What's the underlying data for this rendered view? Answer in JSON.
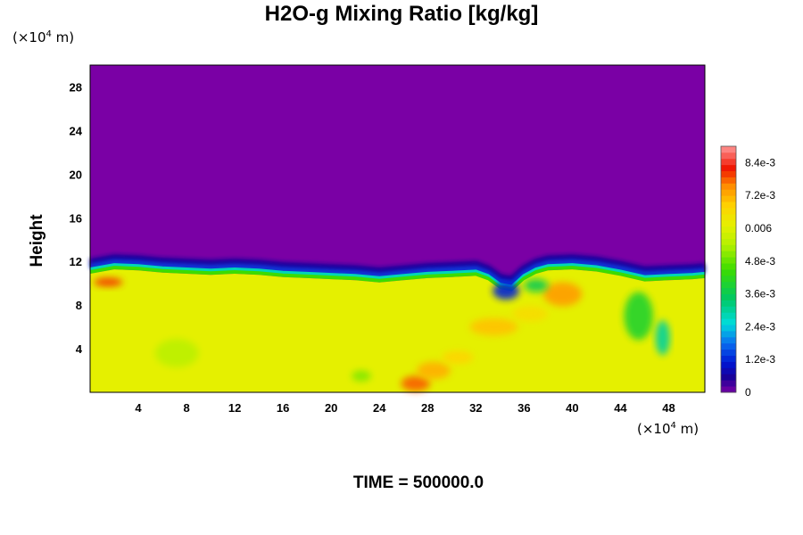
{
  "chart_data": {
    "type": "heatmap",
    "title": "H2O-g Mixing Ratio [kg/kg]",
    "ylabel": "Height",
    "x_unit": {
      "prefix": "(×10",
      "exp": "4",
      "suffix": " m)"
    },
    "y_unit": {
      "prefix": "(×10",
      "exp": "4",
      "suffix": " m)"
    },
    "footer": "TIME = 500000.0",
    "xlim": [
      0,
      51
    ],
    "ylim": [
      0,
      30
    ],
    "x_ticks": [
      4,
      8,
      12,
      16,
      20,
      24,
      28,
      32,
      36,
      40,
      44,
      48
    ],
    "y_ticks": [
      4,
      8,
      12,
      16,
      20,
      24,
      28
    ],
    "colorbar": {
      "range": [
        0,
        0.009
      ],
      "ticks": [
        {
          "value": 0,
          "label": "0"
        },
        {
          "value": 0.0012,
          "label": "1.2e-3"
        },
        {
          "value": 0.0024,
          "label": "2.4e-3"
        },
        {
          "value": 0.0036,
          "label": "3.6e-3"
        },
        {
          "value": 0.0048,
          "label": "4.8e-3"
        },
        {
          "value": 0.006,
          "label": "0.006"
        },
        {
          "value": 0.0072,
          "label": "7.2e-3"
        },
        {
          "value": 0.0084,
          "label": "8.4e-3"
        }
      ]
    },
    "field": {
      "upper_value": 0,
      "lower_value": 0.0061,
      "interface_height": [
        [
          0,
          11.2
        ],
        [
          2,
          11.6
        ],
        [
          4,
          11.5
        ],
        [
          6,
          11.3
        ],
        [
          8,
          11.2
        ],
        [
          10,
          11.1
        ],
        [
          12,
          11.2
        ],
        [
          14,
          11.1
        ],
        [
          16,
          10.9
        ],
        [
          18,
          10.8
        ],
        [
          20,
          10.7
        ],
        [
          22,
          10.6
        ],
        [
          24,
          10.4
        ],
        [
          26,
          10.6
        ],
        [
          28,
          10.8
        ],
        [
          30,
          10.9
        ],
        [
          32,
          11.0
        ],
        [
          33,
          10.6
        ],
        [
          34,
          9.8
        ],
        [
          35,
          9.6
        ],
        [
          36,
          10.6
        ],
        [
          37,
          11.2
        ],
        [
          38,
          11.5
        ],
        [
          40,
          11.6
        ],
        [
          42,
          11.4
        ],
        [
          44,
          11.0
        ],
        [
          46,
          10.5
        ],
        [
          48,
          10.6
        ],
        [
          50,
          10.7
        ],
        [
          51,
          10.8
        ]
      ],
      "features": [
        {
          "type": "blob",
          "x": 27.0,
          "y": 0.8,
          "rx": 1.2,
          "ry": 0.7,
          "value": 0.0078
        },
        {
          "type": "blob",
          "x": 28.5,
          "y": 2.0,
          "rx": 1.4,
          "ry": 0.8,
          "value": 0.0072
        },
        {
          "type": "blob",
          "x": 30.5,
          "y": 3.2,
          "rx": 1.3,
          "ry": 0.6,
          "value": 0.0068
        },
        {
          "type": "blob",
          "x": 33.5,
          "y": 6.0,
          "rx": 2.0,
          "ry": 0.8,
          "value": 0.007
        },
        {
          "type": "blob",
          "x": 39.2,
          "y": 9.0,
          "rx": 1.6,
          "ry": 1.1,
          "value": 0.0074
        },
        {
          "type": "blob",
          "x": 36.5,
          "y": 7.2,
          "rx": 1.5,
          "ry": 0.7,
          "value": 0.0066
        },
        {
          "type": "blob",
          "x": 7.2,
          "y": 3.6,
          "rx": 1.8,
          "ry": 1.3,
          "value": 0.0055
        },
        {
          "type": "blob",
          "x": 1.5,
          "y": 10.1,
          "rx": 1.2,
          "ry": 0.4,
          "value": 0.008
        },
        {
          "type": "blob",
          "x": 22.5,
          "y": 1.5,
          "rx": 0.8,
          "ry": 0.5,
          "value": 0.005
        },
        {
          "type": "blob",
          "x": 45.5,
          "y": 7.0,
          "rx": 1.2,
          "ry": 2.2,
          "value": 0.004
        },
        {
          "type": "blob",
          "x": 47.5,
          "y": 5.0,
          "rx": 0.6,
          "ry": 1.6,
          "value": 0.003
        },
        {
          "type": "blob",
          "x": 34.5,
          "y": 9.3,
          "rx": 1.1,
          "ry": 0.8,
          "value": 0.0012
        },
        {
          "type": "blob",
          "x": 37.0,
          "y": 9.8,
          "rx": 1.0,
          "ry": 0.6,
          "value": 0.0036
        }
      ]
    }
  }
}
